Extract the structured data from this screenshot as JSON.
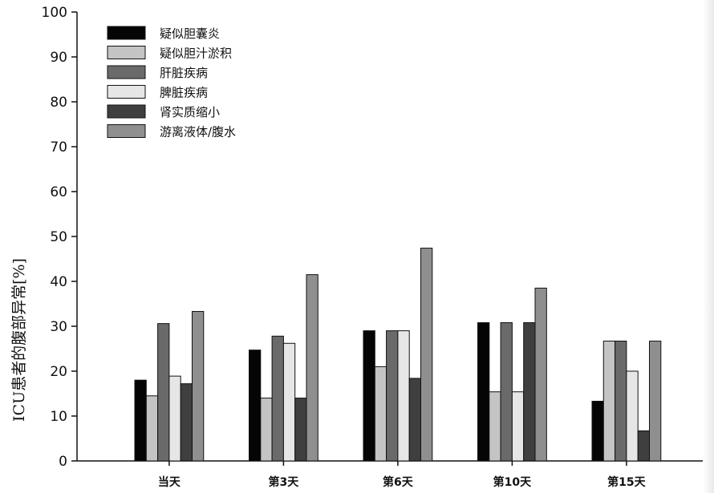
{
  "chart_data": {
    "type": "bar",
    "title": "",
    "xlabel": "",
    "ylabel": "ICU患者的腹部异常[%]",
    "ylim": [
      0,
      100
    ],
    "yticks": [
      0,
      10,
      20,
      30,
      40,
      50,
      60,
      70,
      80,
      90,
      100
    ],
    "grid": false,
    "legend_position": "top-left",
    "categories": [
      "当天",
      "第3天",
      "第6天",
      "第10天",
      "第15天"
    ],
    "series": [
      {
        "name": "疑似胆囊炎",
        "color": "#050505",
        "values": [
          18.0,
          24.7,
          29.0,
          30.8,
          13.3
        ]
      },
      {
        "name": "疑似胆汁淤积",
        "color": "#c4c4c4",
        "values": [
          14.5,
          14.0,
          21.0,
          15.4,
          26.7
        ]
      },
      {
        "name": "肝脏疾病",
        "color": "#6a6a6a",
        "values": [
          30.6,
          27.8,
          29.0,
          30.8,
          26.7
        ]
      },
      {
        "name": "脾脏疾病",
        "color": "#e6e6e6",
        "values": [
          18.9,
          26.2,
          29.0,
          15.4,
          20.0
        ]
      },
      {
        "name": "肾实质缩小",
        "color": "#3f3f3f",
        "values": [
          17.2,
          14.0,
          18.4,
          30.8,
          6.7
        ]
      },
      {
        "name": "游离液体/腹水",
        "color": "#8f8f8f",
        "values": [
          33.3,
          41.5,
          47.4,
          38.5,
          26.7
        ]
      }
    ]
  }
}
